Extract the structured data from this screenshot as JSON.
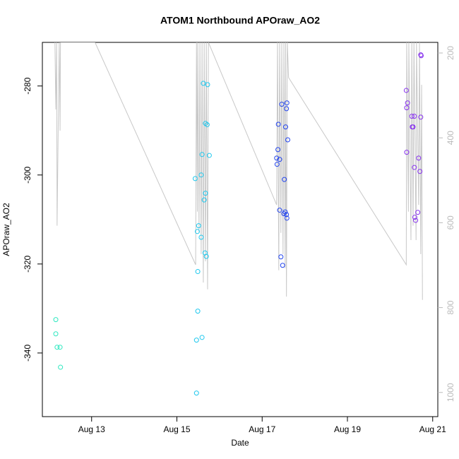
{
  "chart_data": {
    "type": "scatter",
    "title": "ATOM1 Northbound APOraw_AO2",
    "x_label": "Date",
    "y_label": "APOraw_AO2",
    "xlim": [
      11.845,
      21.12
    ],
    "xticks": [
      {
        "value": 13,
        "label": "Aug 13"
      },
      {
        "value": 15,
        "label": "Aug 15"
      },
      {
        "value": 17,
        "label": "Aug 17"
      },
      {
        "value": 19,
        "label": "Aug 19"
      },
      {
        "value": 21,
        "label": "Aug 21"
      }
    ],
    "ylim": [
      -354.3,
      -270.2
    ],
    "yticks": [
      -280,
      -300,
      -320,
      -340
    ],
    "y2lim": [
      1057,
      175
    ],
    "y2ticks": [
      200,
      400,
      600,
      800,
      1000
    ],
    "series": [
      {
        "color": "#2fe8c0",
        "x": [
          12.16,
          12.16,
          12.19,
          12.26,
          12.27
        ],
        "values": [
          -332.5,
          -335.7,
          -338.7,
          -338.7,
          -343.2
        ]
      },
      {
        "color": "#1ec8ee",
        "x": [
          15.43,
          15.48,
          15.51,
          15.49,
          15.49,
          15.46,
          15.46,
          15.57,
          15.57,
          15.59,
          15.62,
          15.64,
          15.66,
          15.67,
          15.69,
          15.67,
          15.71,
          15.72,
          15.76,
          15.59
        ],
        "values": [
          -300.8,
          -312.7,
          -311.4,
          -321.7,
          -330.6,
          -337.1,
          -349.0,
          -314.0,
          -300.0,
          -295.4,
          -279.4,
          -305.6,
          -317.5,
          -304.1,
          -318.3,
          -288.4,
          -288.7,
          -279.7,
          -295.6,
          -336.5
        ]
      },
      {
        "color": "#2244ee",
        "x": [
          17.34,
          17.35,
          17.37,
          17.38,
          17.41,
          17.41,
          17.44,
          17.46,
          17.48,
          17.51,
          17.52,
          17.54,
          17.55,
          17.57,
          17.57,
          17.58,
          17.58,
          17.6
        ],
        "values": [
          -296.2,
          -297.6,
          -294.3,
          -288.6,
          -296.5,
          -307.9,
          -318.4,
          -284.1,
          -320.3,
          -308.7,
          -301.0,
          -308.3,
          -289.2,
          -308.9,
          -285.1,
          -309.7,
          -283.8,
          -292.1
        ]
      },
      {
        "color": "#8833ee",
        "x": [
          20.38,
          20.39,
          20.39,
          20.41,
          20.51,
          20.52,
          20.54,
          20.57,
          20.57,
          20.58,
          20.6,
          20.65,
          20.67,
          20.7,
          20.72,
          20.72,
          20.73
        ],
        "values": [
          -281.0,
          -294.9,
          -284.9,
          -283.8,
          -286.8,
          -289.2,
          -289.2,
          -286.8,
          -298.3,
          -309.5,
          -310.2,
          -308.4,
          -296.2,
          -299.2,
          -287.0,
          -273.0,
          -273.2
        ]
      },
      {
        "type": "line",
        "axis": "y2",
        "color": "#c8c8c8",
        "x": [
          12.14,
          12.16,
          12.18,
          12.19,
          12.24,
          12.26,
          12.27,
          13.08,
          15.44,
          15.46,
          15.48,
          15.49,
          15.52,
          15.54,
          15.57,
          15.59,
          15.62,
          15.64,
          15.67,
          15.69,
          15.72,
          15.74,
          17.34,
          17.36,
          17.39,
          17.41,
          17.44,
          17.46,
          17.49,
          17.51,
          17.54,
          17.55,
          17.57,
          17.59,
          17.62,
          20.38,
          20.39,
          20.43,
          20.44,
          20.49,
          20.51,
          20.54,
          20.56,
          20.61,
          20.62,
          20.67,
          20.69,
          20.72,
          20.74,
          20.76
        ],
        "values": [
          175,
          333,
          175,
          607,
          175,
          383,
          175,
          175,
          699,
          175,
          574,
          175,
          624,
          175,
          674,
          175,
          741,
          175,
          691,
          175,
          757,
          175,
          558,
          175,
          712,
          175,
          624,
          175,
          674,
          175,
          707,
          175,
          774,
          175,
          258,
          699,
          175,
          574,
          175,
          641,
          175,
          607,
          175,
          641,
          175,
          558,
          175,
          674,
          275,
          782
        ]
      }
    ]
  }
}
